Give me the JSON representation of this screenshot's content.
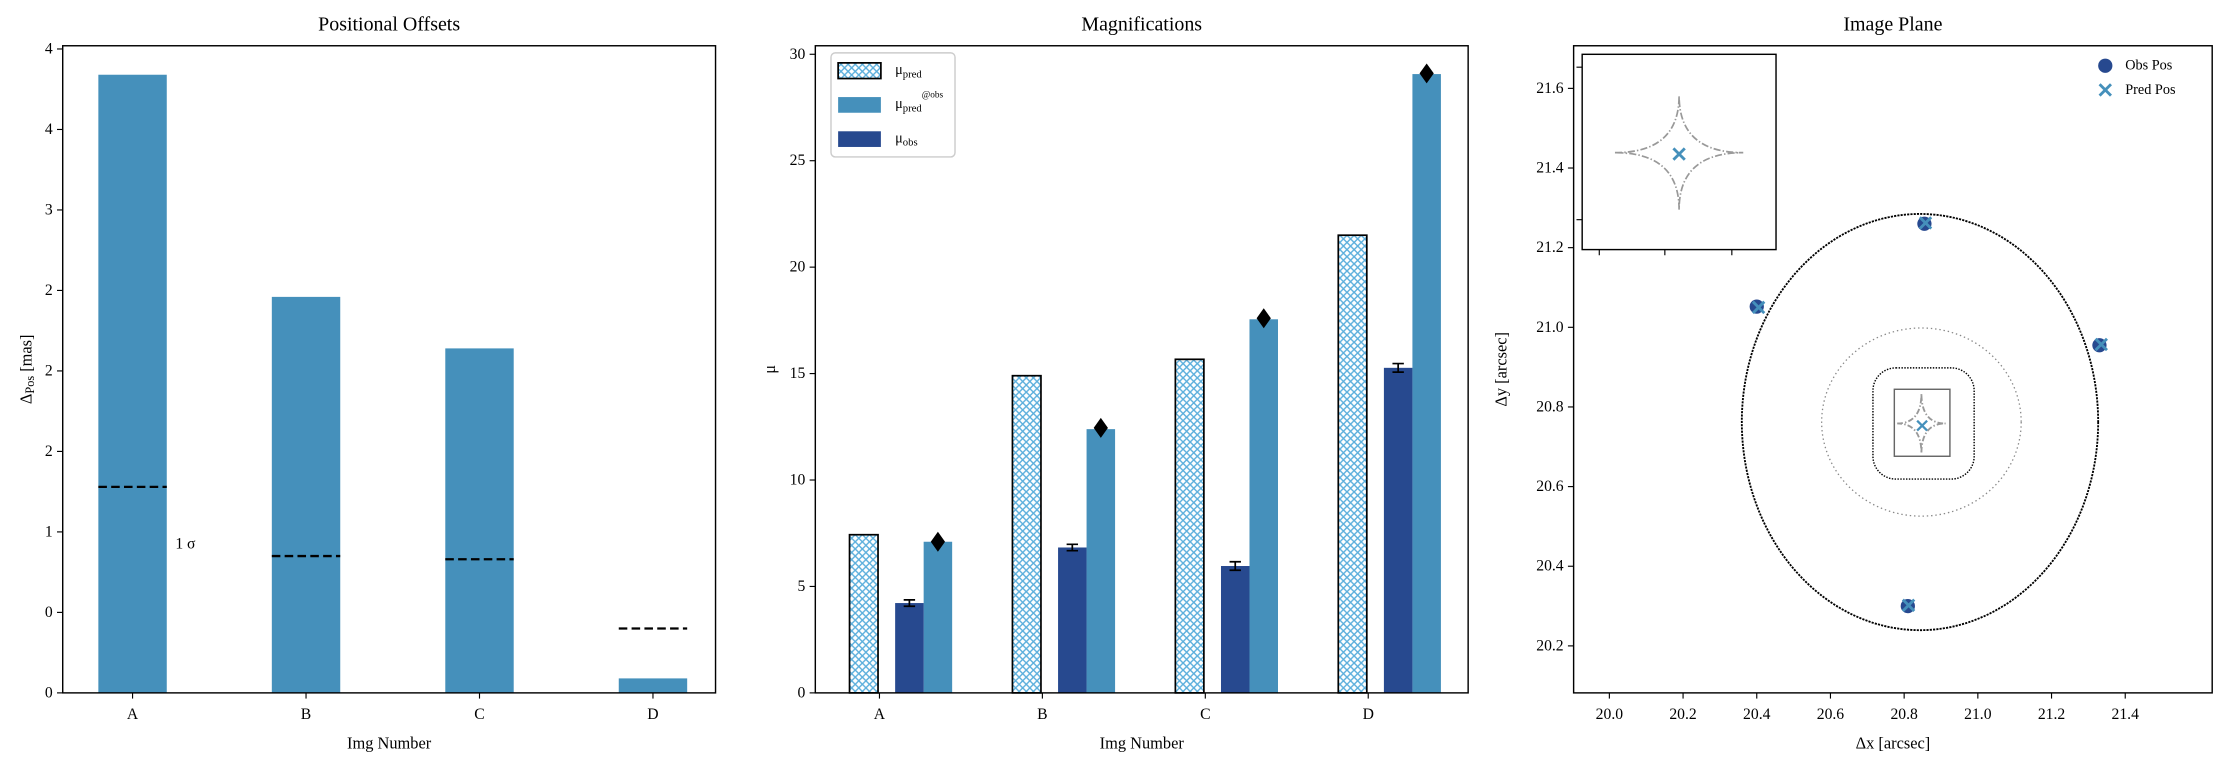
{
  "chart_data": [
    {
      "type": "bar",
      "title": "Positional Offsets",
      "x_label": "Img Number",
      "y_label": "ΔPos [mas]",
      "categories": [
        "A",
        "B",
        "C",
        "D"
      ],
      "values": [
        3.84,
        2.46,
        2.14,
        0.09
      ],
      "color": "#4590bb",
      "sigma_values": [
        1.28,
        0.85,
        0.83,
        0.4
      ],
      "annotation": "1 σ",
      "ylim": [
        0,
        4.02
      ],
      "yticks": [
        {
          "value": 0,
          "label": "0"
        },
        {
          "value": 0.5,
          "label": "0"
        },
        {
          "value": 1,
          "label": "1"
        },
        {
          "value": 1.5,
          "label": "2"
        },
        {
          "value": 2,
          "label": "2"
        },
        {
          "value": 2.5,
          "label": "2"
        },
        {
          "value": 3,
          "label": "3"
        },
        {
          "value": 3.5,
          "label": "4"
        },
        {
          "value": 4,
          "label": "4"
        }
      ]
    },
    {
      "type": "bar",
      "title": "Magnifications",
      "x_label": "Img Number",
      "y_label": "μ",
      "categories": [
        "A",
        "B",
        "C",
        "D"
      ],
      "series": [
        {
          "name": "μpred",
          "color": "#5aaedc",
          "hatch": true,
          "values": [
            7.43,
            14.9,
            15.67,
            21.5
          ]
        },
        {
          "name": "μpred@obs",
          "color": "#4590bb",
          "values": [
            7.1,
            12.39,
            17.55,
            29.07
          ]
        },
        {
          "name": "μobs",
          "color": "#27498f",
          "values": [
            4.22,
            6.83,
            5.96,
            15.27
          ],
          "errors": [
            0.15,
            0.15,
            0.2,
            0.2
          ]
        }
      ],
      "diamond_values": [
        7.1,
        12.45,
        17.6,
        29.1
      ],
      "legend": "upper left",
      "ylim": [
        0,
        30.4
      ],
      "yticks": [
        0,
        5,
        10,
        15,
        20,
        25,
        30
      ]
    },
    {
      "type": "scatter",
      "title": "Image Plane",
      "x_label": "Δx [arcsec]",
      "y_label": "Δy [arcsec]",
      "series": [
        {
          "name": "Obs Pos",
          "color": "#27498f",
          "marker": "o",
          "x": [
            20.4,
            20.855,
            21.33,
            20.81
          ],
          "values": [
            21.052,
            21.26,
            20.955,
            20.3
          ]
        },
        {
          "name": "Pred Pos",
          "color": "#4590bb",
          "marker": "x",
          "x": [
            20.405,
            20.858,
            21.335,
            20.812
          ],
          "values": [
            21.05,
            21.262,
            20.957,
            20.302
          ]
        }
      ],
      "legend": "upper right",
      "xlim": [
        19.903,
        21.636
      ],
      "ylim": [
        20.082,
        21.707
      ],
      "xticks": [
        {
          "value": 20,
          "label": "20.0"
        },
        20.2,
        20.4,
        20.6,
        20.8,
        {
          "value": 21,
          "label": "21.0"
        },
        21.2,
        21.4
      ],
      "yticks": [
        20.2,
        20.4,
        20.6,
        20.8,
        {
          "value": 21,
          "label": "21.0"
        },
        21.2,
        21.4,
        21.6
      ]
    }
  ]
}
